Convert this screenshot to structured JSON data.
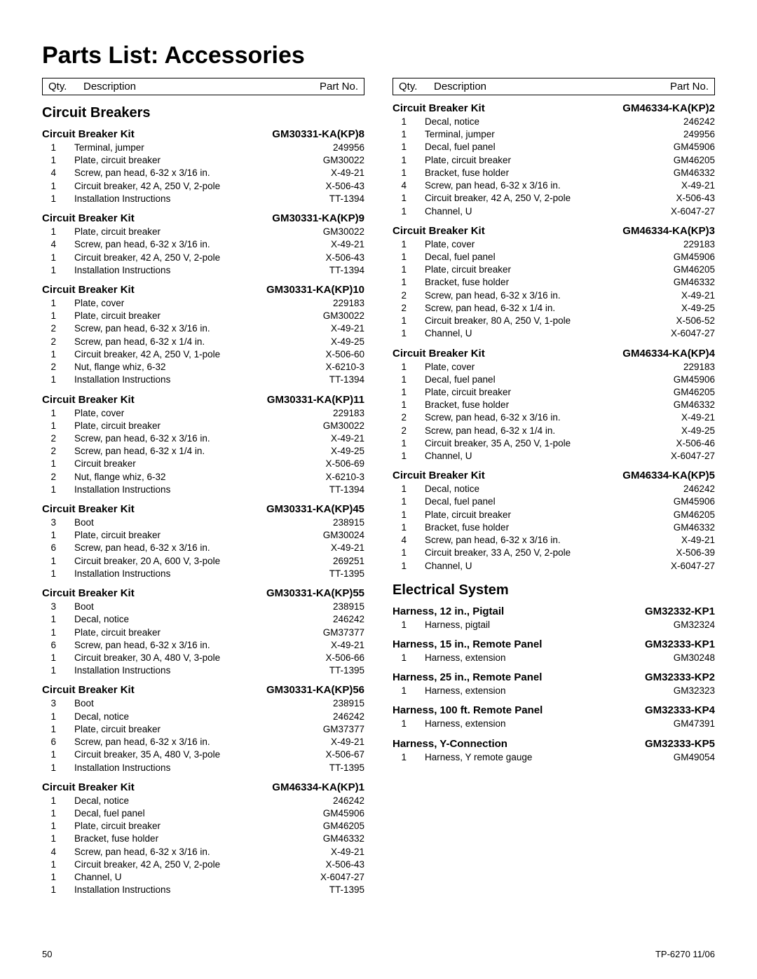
{
  "title": "Parts List:  Accessories",
  "header": {
    "qty": "Qty.",
    "desc": "Description",
    "part": "Part No."
  },
  "footer": {
    "page": "50",
    "doc": "TP-6270  11/06"
  },
  "left": {
    "sections": [
      {
        "title": "Circuit Breakers",
        "kits": [
          {
            "name": "Circuit Breaker Kit",
            "part": "GM30331-KA(KP)8",
            "items": [
              {
                "q": "1",
                "d": "Terminal, jumper",
                "p": "249956"
              },
              {
                "q": "1",
                "d": "Plate, circuit breaker",
                "p": "GM30022"
              },
              {
                "q": "4",
                "d": "Screw, pan head, 6-32 x 3/16 in.",
                "p": "X-49-21"
              },
              {
                "q": "1",
                "d": "Circuit breaker, 42 A, 250 V, 2-pole",
                "p": "X-506-43"
              },
              {
                "q": "1",
                "d": "Installation Instructions",
                "p": "TT-1394"
              }
            ]
          },
          {
            "name": "Circuit Breaker Kit",
            "part": "GM30331-KA(KP)9",
            "items": [
              {
                "q": "1",
                "d": "Plate, circuit breaker",
                "p": "GM30022"
              },
              {
                "q": "4",
                "d": "Screw, pan head, 6-32 x 3/16 in.",
                "p": "X-49-21"
              },
              {
                "q": "1",
                "d": "Circuit breaker, 42 A, 250 V, 2-pole",
                "p": "X-506-43"
              },
              {
                "q": "1",
                "d": "Installation Instructions",
                "p": "TT-1394"
              }
            ]
          },
          {
            "name": "Circuit Breaker Kit",
            "part": "GM30331-KA(KP)10",
            "items": [
              {
                "q": "1",
                "d": "Plate, cover",
                "p": "229183"
              },
              {
                "q": "1",
                "d": "Plate, circuit breaker",
                "p": "GM30022"
              },
              {
                "q": "2",
                "d": "Screw, pan head, 6-32 x 3/16 in.",
                "p": "X-49-21"
              },
              {
                "q": "2",
                "d": "Screw, pan head, 6-32 x 1/4 in.",
                "p": "X-49-25"
              },
              {
                "q": "1",
                "d": "Circuit breaker, 42 A, 250 V, 1-pole",
                "p": "X-506-60"
              },
              {
                "q": "2",
                "d": "Nut, flange whiz, 6-32",
                "p": "X-6210-3"
              },
              {
                "q": "1",
                "d": "Installation Instructions",
                "p": "TT-1394"
              }
            ]
          },
          {
            "name": "Circuit Breaker Kit",
            "part": "GM30331-KA(KP)11",
            "items": [
              {
                "q": "1",
                "d": "Plate, cover",
                "p": "229183"
              },
              {
                "q": "1",
                "d": "Plate, circuit breaker",
                "p": "GM30022"
              },
              {
                "q": "2",
                "d": "Screw, pan head, 6-32 x 3/16 in.",
                "p": "X-49-21"
              },
              {
                "q": "2",
                "d": "Screw, pan head, 6-32 x 1/4 in.",
                "p": "X-49-25"
              },
              {
                "q": "1",
                "d": "Circuit breaker",
                "p": "X-506-69"
              },
              {
                "q": "2",
                "d": "Nut, flange whiz, 6-32",
                "p": "X-6210-3"
              },
              {
                "q": "1",
                "d": "Installation Instructions",
                "p": "TT-1394"
              }
            ]
          },
          {
            "name": "Circuit Breaker Kit",
            "part": "GM30331-KA(KP)45",
            "items": [
              {
                "q": "3",
                "d": "Boot",
                "p": "238915"
              },
              {
                "q": "1",
                "d": "Plate, circuit breaker",
                "p": "GM30024"
              },
              {
                "q": "6",
                "d": "Screw, pan head, 6-32 x 3/16 in.",
                "p": "X-49-21"
              },
              {
                "q": "1",
                "d": "Circuit breaker, 20 A, 600 V, 3-pole",
                "p": "269251"
              },
              {
                "q": "1",
                "d": "Installation Instructions",
                "p": "TT-1395"
              }
            ]
          },
          {
            "name": "Circuit Breaker Kit",
            "part": "GM30331-KA(KP)55",
            "items": [
              {
                "q": "3",
                "d": "Boot",
                "p": "238915"
              },
              {
                "q": "1",
                "d": "Decal, notice",
                "p": "246242"
              },
              {
                "q": "1",
                "d": "Plate, circuit breaker",
                "p": "GM37377"
              },
              {
                "q": "6",
                "d": "Screw, pan head, 6-32 x 3/16 in.",
                "p": "X-49-21"
              },
              {
                "q": "1",
                "d": "Circuit breaker, 30 A, 480 V, 3-pole",
                "p": "X-506-66"
              },
              {
                "q": "1",
                "d": "Installation Instructions",
                "p": "TT-1395"
              }
            ]
          },
          {
            "name": "Circuit Breaker Kit",
            "part": "GM30331-KA(KP)56",
            "items": [
              {
                "q": "3",
                "d": "Boot",
                "p": "238915"
              },
              {
                "q": "1",
                "d": "Decal, notice",
                "p": "246242"
              },
              {
                "q": "1",
                "d": "Plate, circuit breaker",
                "p": "GM37377"
              },
              {
                "q": "6",
                "d": "Screw, pan head, 6-32 x 3/16 in.",
                "p": "X-49-21"
              },
              {
                "q": "1",
                "d": "Circuit breaker, 35 A, 480 V, 3-pole",
                "p": "X-506-67"
              },
              {
                "q": "1",
                "d": "Installation Instructions",
                "p": "TT-1395"
              }
            ]
          },
          {
            "name": "Circuit Breaker Kit",
            "part": "GM46334-KA(KP)1",
            "items": [
              {
                "q": "1",
                "d": "Decal, notice",
                "p": "246242"
              },
              {
                "q": "1",
                "d": "Decal, fuel panel",
                "p": "GM45906"
              },
              {
                "q": "1",
                "d": "Plate, circuit breaker",
                "p": "GM46205"
              },
              {
                "q": "1",
                "d": "Bracket, fuse holder",
                "p": "GM46332"
              },
              {
                "q": "4",
                "d": "Screw, pan head, 6-32 x 3/16 in.",
                "p": "X-49-21"
              },
              {
                "q": "1",
                "d": "Circuit breaker, 42 A, 250 V, 2-pole",
                "p": "X-506-43"
              },
              {
                "q": "1",
                "d": "Channel, U",
                "p": "X-6047-27"
              },
              {
                "q": "1",
                "d": "Installation Instructions",
                "p": "TT-1395"
              }
            ]
          }
        ]
      }
    ]
  },
  "right": {
    "sections": [
      {
        "title": "",
        "kits": [
          {
            "name": "Circuit Breaker Kit",
            "part": "GM46334-KA(KP)2",
            "items": [
              {
                "q": "1",
                "d": "Decal, notice",
                "p": "246242"
              },
              {
                "q": "1",
                "d": "Terminal, jumper",
                "p": "249956"
              },
              {
                "q": "1",
                "d": "Decal, fuel panel",
                "p": "GM45906"
              },
              {
                "q": "1",
                "d": "Plate, circuit breaker",
                "p": "GM46205"
              },
              {
                "q": "1",
                "d": "Bracket, fuse holder",
                "p": "GM46332"
              },
              {
                "q": "4",
                "d": "Screw, pan head, 6-32 x 3/16 in.",
                "p": "X-49-21"
              },
              {
                "q": "1",
                "d": "Circuit breaker, 42 A, 250 V, 2-pole",
                "p": "X-506-43"
              },
              {
                "q": "1",
                "d": "Channel, U",
                "p": "X-6047-27"
              }
            ]
          },
          {
            "name": "Circuit Breaker Kit",
            "part": "GM46334-KA(KP)3",
            "items": [
              {
                "q": "1",
                "d": "Plate, cover",
                "p": "229183"
              },
              {
                "q": "1",
                "d": "Decal, fuel panel",
                "p": "GM45906"
              },
              {
                "q": "1",
                "d": "Plate, circuit breaker",
                "p": "GM46205"
              },
              {
                "q": "1",
                "d": "Bracket, fuse holder",
                "p": "GM46332"
              },
              {
                "q": "2",
                "d": "Screw, pan head, 6-32 x 3/16 in.",
                "p": "X-49-21"
              },
              {
                "q": "2",
                "d": "Screw, pan head, 6-32 x 1/4 in.",
                "p": "X-49-25"
              },
              {
                "q": "1",
                "d": "Circuit breaker, 80 A, 250 V, 1-pole",
                "p": "X-506-52"
              },
              {
                "q": "1",
                "d": "Channel, U",
                "p": "X-6047-27"
              }
            ]
          },
          {
            "name": "Circuit Breaker Kit",
            "part": "GM46334-KA(KP)4",
            "items": [
              {
                "q": "1",
                "d": "Plate, cover",
                "p": "229183"
              },
              {
                "q": "1",
                "d": "Decal, fuel panel",
                "p": "GM45906"
              },
              {
                "q": "1",
                "d": "Plate, circuit breaker",
                "p": "GM46205"
              },
              {
                "q": "1",
                "d": "Bracket, fuse holder",
                "p": "GM46332"
              },
              {
                "q": "2",
                "d": "Screw, pan head, 6-32 x 3/16 in.",
                "p": "X-49-21"
              },
              {
                "q": "2",
                "d": "Screw, pan head, 6-32 x 1/4 in.",
                "p": "X-49-25"
              },
              {
                "q": "1",
                "d": "Circuit breaker, 35 A, 250 V, 1-pole",
                "p": "X-506-46"
              },
              {
                "q": "1",
                "d": "Channel, U",
                "p": "X-6047-27"
              }
            ]
          },
          {
            "name": "Circuit Breaker Kit",
            "part": "GM46334-KA(KP)5",
            "items": [
              {
                "q": "1",
                "d": "Decal, notice",
                "p": "246242"
              },
              {
                "q": "1",
                "d": "Decal, fuel panel",
                "p": "GM45906"
              },
              {
                "q": "1",
                "d": "Plate, circuit breaker",
                "p": "GM46205"
              },
              {
                "q": "1",
                "d": "Bracket, fuse holder",
                "p": "GM46332"
              },
              {
                "q": "4",
                "d": "Screw, pan head, 6-32 x 3/16 in.",
                "p": "X-49-21"
              },
              {
                "q": "1",
                "d": "Circuit breaker, 33 A, 250 V, 2-pole",
                "p": "X-506-39"
              },
              {
                "q": "1",
                "d": "Channel, U",
                "p": "X-6047-27"
              }
            ]
          }
        ]
      },
      {
        "title": "Electrical System",
        "kits": [
          {
            "name": "Harness, 12 in., Pigtail",
            "part": "GM32332-KP1",
            "items": [
              {
                "q": "1",
                "d": "Harness, pigtail",
                "p": "GM32324"
              }
            ]
          },
          {
            "name": "Harness, 15 in., Remote Panel",
            "part": "GM32333-KP1",
            "items": [
              {
                "q": "1",
                "d": "Harness, extension",
                "p": "GM30248"
              }
            ]
          },
          {
            "name": "Harness, 25 in., Remote Panel",
            "part": "GM32333-KP2",
            "items": [
              {
                "q": "1",
                "d": "Harness, extension",
                "p": "GM32323"
              }
            ]
          },
          {
            "name": "Harness, 100 ft. Remote Panel",
            "part": "GM32333-KP4",
            "items": [
              {
                "q": "1",
                "d": "Harness, extension",
                "p": "GM47391"
              }
            ]
          },
          {
            "name": "Harness, Y-Connection",
            "part": "GM32333-KP5",
            "items": [
              {
                "q": "1",
                "d": "Harness, Y remote gauge",
                "p": "GM49054"
              }
            ]
          }
        ]
      }
    ]
  }
}
